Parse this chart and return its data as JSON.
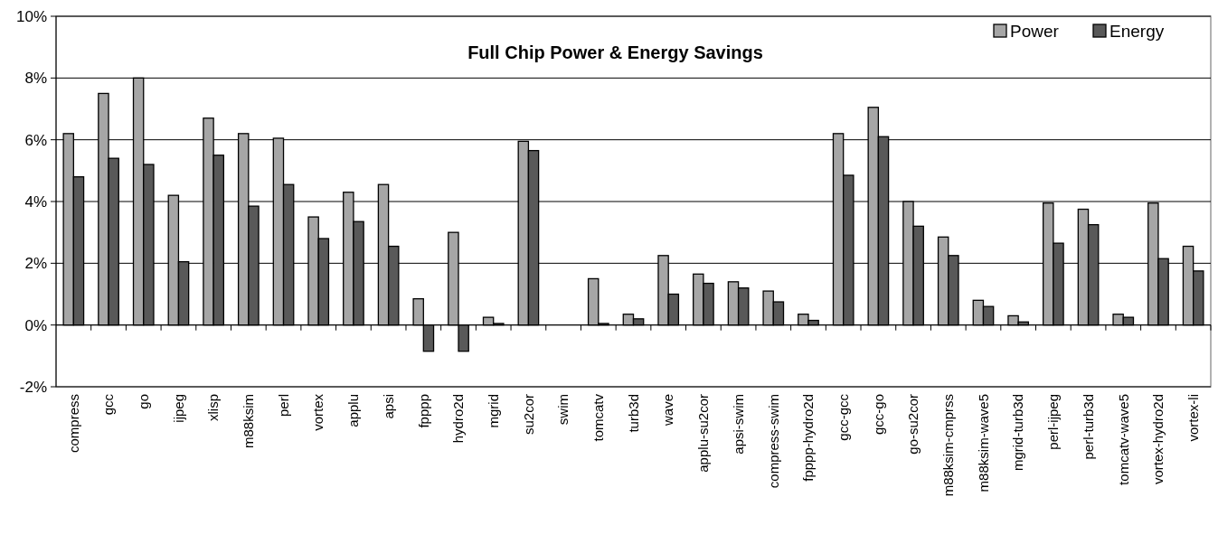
{
  "chart_data": {
    "type": "bar",
    "title": "Full Chip Power & Energy Savings",
    "categories": [
      "compress",
      "gcc",
      "go",
      "ijpeg",
      "xlisp",
      "m88ksim",
      "perl",
      "vortex",
      "applu",
      "apsi",
      "fpppp",
      "hydro2d",
      "mgrid",
      "su2cor",
      "swim",
      "tomcatv",
      "turb3d",
      "wave",
      "applu-su2cor",
      "apsi-swim",
      "compress-swim",
      "fpppp-hydro2d",
      "gcc-gcc",
      "gcc-go",
      "go-su2cor",
      "m88ksim-cmprss",
      "m88ksim-wave5",
      "mgrid-turb3d",
      "perl-ijpeg",
      "perl-turb3d",
      "tomcatv-wave5",
      "vortex-hydro2d",
      "vortex-li"
    ],
    "series": [
      {
        "name": "Power",
        "color": "#a6a6a6",
        "values": [
          6.2,
          7.5,
          8.0,
          4.2,
          6.7,
          6.2,
          6.05,
          3.5,
          4.3,
          4.55,
          0.85,
          3.0,
          0.25,
          5.95,
          null,
          1.5,
          0.35,
          2.25,
          1.65,
          1.4,
          1.1,
          0.35,
          6.2,
          7.05,
          4.0,
          2.85,
          0.8,
          0.3,
          3.95,
          3.75,
          0.35,
          3.95,
          2.55
        ]
      },
      {
        "name": "Energy",
        "color": "#595959",
        "values": [
          4.8,
          5.4,
          5.2,
          2.05,
          5.5,
          3.85,
          4.55,
          2.8,
          3.35,
          2.55,
          -0.85,
          -0.85,
          0.05,
          5.65,
          null,
          0.05,
          0.2,
          1.0,
          1.35,
          1.2,
          0.75,
          0.15,
          4.85,
          6.1,
          3.2,
          2.25,
          0.6,
          0.1,
          2.65,
          3.25,
          0.25,
          2.15,
          1.75
        ]
      }
    ],
    "ylim": [
      -2,
      10
    ],
    "yticks": [
      {
        "value": -2,
        "label": "-2%"
      },
      {
        "value": 0,
        "label": "0%"
      },
      {
        "value": 2,
        "label": "2%"
      },
      {
        "value": 4,
        "label": "4%"
      },
      {
        "value": 6,
        "label": "6%"
      },
      {
        "value": 8,
        "label": "8%"
      },
      {
        "value": 10,
        "label": "10%"
      }
    ],
    "grid": "y",
    "legend": "top right"
  }
}
